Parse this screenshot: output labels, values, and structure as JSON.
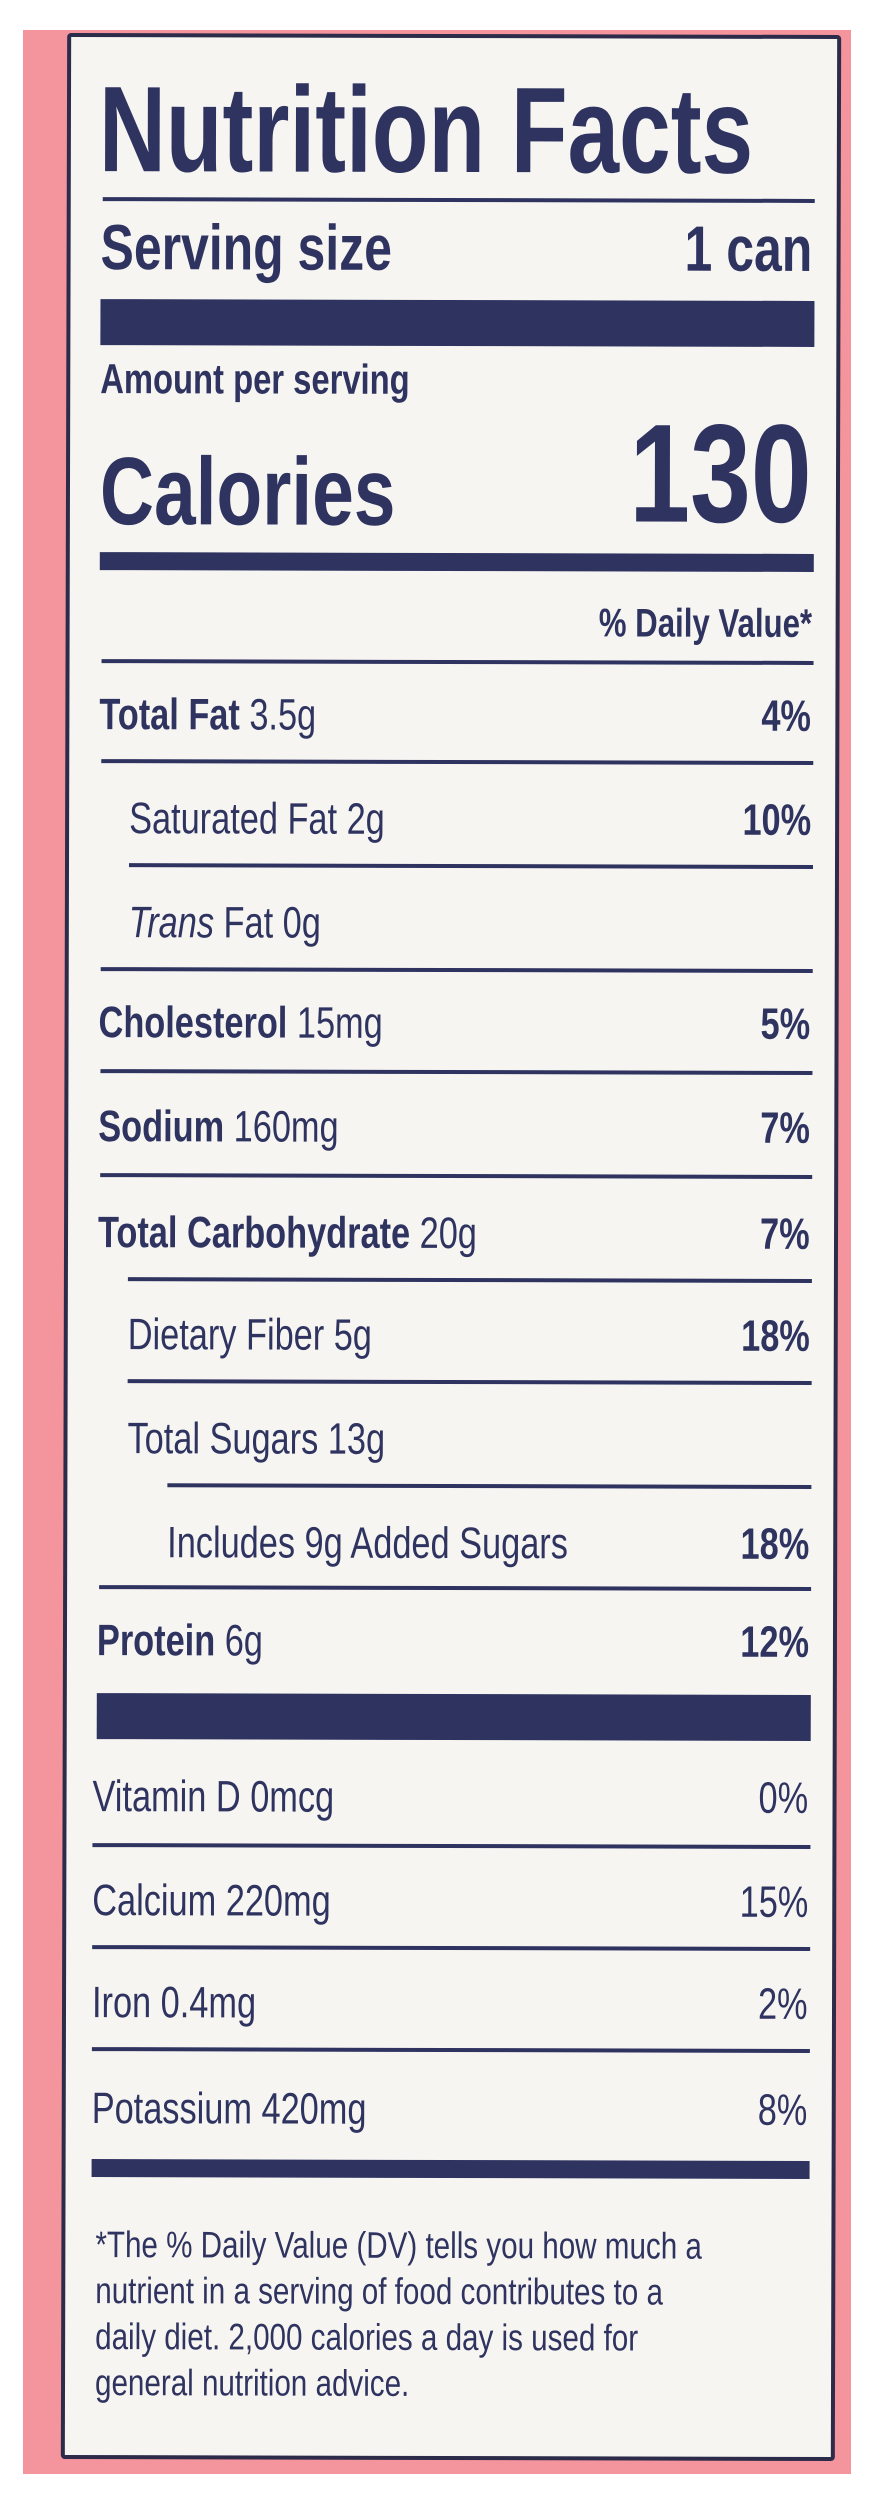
{
  "label": {
    "title": "Nutrition Facts",
    "serving_size_label": "Serving size",
    "serving_size_value": "1 can",
    "amount_per_serving": "Amount per serving",
    "calories_label": "Calories",
    "calories_value": "130",
    "daily_value_header": "% Daily Value*",
    "nutrients": [
      {
        "name": "Total Fat",
        "amount": "3.5g",
        "dv": "4%"
      },
      {
        "name": "Saturated Fat",
        "amount": "2g",
        "dv": "10%"
      },
      {
        "name": "Trans",
        "name_suffix": "Fat",
        "amount": "0g",
        "dv": ""
      },
      {
        "name": "Cholesterol",
        "amount": "15mg",
        "dv": "5%"
      },
      {
        "name": "Sodium",
        "amount": "160mg",
        "dv": "7%"
      },
      {
        "name": "Total Carbohydrate",
        "amount": "20g",
        "dv": "7%"
      },
      {
        "name": "Dietary Fiber",
        "amount": "5g",
        "dv": "18%"
      },
      {
        "name": "Total Sugars",
        "amount": "13g",
        "dv": ""
      },
      {
        "name": "Includes 9g Added Sugars",
        "amount": "",
        "dv": "18%"
      },
      {
        "name": "Protein",
        "amount": "6g",
        "dv": "12%"
      }
    ],
    "vitamins": [
      {
        "name": "Vitamin D",
        "amount": "0mcg",
        "dv": "0%"
      },
      {
        "name": "Calcium",
        "amount": "220mg",
        "dv": "15%"
      },
      {
        "name": "Iron",
        "amount": "0.4mg",
        "dv": "2%"
      },
      {
        "name": "Potassium",
        "amount": "420mg",
        "dv": "8%"
      }
    ],
    "footnote_lines": [
      "*The % Daily Value (DV) tells you how much a",
      "nutrient in a serving of food contributes to a",
      "daily diet. 2,000 calories a day is used for",
      "general nutrition advice."
    ]
  },
  "colors": {
    "ink": "#2f3360",
    "background": "#f4949c",
    "panel": "#f6f5f1"
  }
}
